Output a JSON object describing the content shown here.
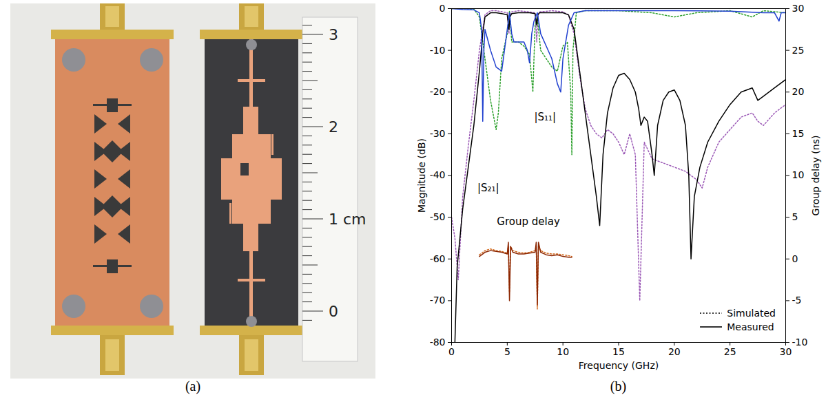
{
  "figure": {
    "panel_labels": [
      "(a)",
      "(b)"
    ],
    "photo": {
      "ruler_labels": [
        "0",
        "1 cm",
        "2",
        "3"
      ]
    }
  },
  "chart_data": {
    "type": "line",
    "x_label": "Frequency (GHz)",
    "y_label": "Magnitude (dB)",
    "y2_label": "Group delay (ns)",
    "xlim": [
      0,
      30
    ],
    "xticks": [
      0,
      5,
      10,
      15,
      20,
      25,
      30
    ],
    "ylim": [
      -80,
      0
    ],
    "yticks": [
      -80,
      -70,
      -60,
      -50,
      -40,
      -30,
      -20,
      -10,
      0
    ],
    "y2lim": [
      -10,
      30
    ],
    "y2ticks": [
      -10,
      -5,
      0,
      5,
      10,
      15,
      20,
      25,
      30
    ],
    "grid": false,
    "legend": "lower right",
    "annotations": [
      {
        "text": "|S₂₁|",
        "x": 3.3,
        "y": -43
      },
      {
        "text": "|S₁₁|",
        "x": 8.4,
        "y": -26
      },
      {
        "text": "Group delay",
        "x": 6.9,
        "y": -51
      }
    ],
    "series": [
      {
        "name": "Simulated",
        "color": "#9b59b6",
        "line_style": "dotted",
        "x": [
          0,
          0.3,
          0.6,
          1,
          1.5,
          2,
          2.5,
          3,
          3.5,
          4,
          5,
          5.15,
          5.25,
          5.4,
          6,
          7,
          7.5,
          7.65,
          7.75,
          7.9,
          9,
          10,
          10.5,
          11,
          11.5,
          12,
          12.5,
          13,
          13.5,
          14,
          14.5,
          15,
          15.5,
          16,
          16.5,
          16.9,
          17.3,
          18,
          19,
          20,
          21,
          22,
          22.5,
          23,
          24,
          25,
          26,
          27,
          27.5,
          28,
          29,
          30
        ],
        "values": [
          -50,
          -55,
          -65,
          -45,
          -33,
          -22,
          -10,
          -1.5,
          -0.5,
          -0.5,
          -1,
          -6,
          -1.5,
          -0.8,
          -0.5,
          -0.8,
          -1,
          -8,
          -1.5,
          -0.8,
          -0.5,
          -0.8,
          -1.5,
          -6,
          -16,
          -24,
          -28,
          -30,
          -31,
          -29,
          -30,
          -32,
          -35,
          -30,
          -35,
          -70,
          -32,
          -36,
          -37,
          -38,
          -39,
          -41,
          -43,
          -38,
          -32,
          -29,
          -26,
          -25,
          -27,
          -28,
          -25,
          -23
        ]
      },
      {
        "name": "Simulated",
        "color": "#2ca02c",
        "line_style": "dotted",
        "x": [
          0,
          1,
          2,
          2.5,
          3,
          3.5,
          4,
          4.2,
          4.5,
          5,
          5.2,
          5.4,
          6,
          6.5,
          7,
          7.3,
          7.5,
          7.7,
          8,
          9,
          9.5,
          10,
          10.4,
          10.7,
          10.8,
          10.9,
          11.2,
          12,
          15,
          18,
          20,
          22,
          25,
          27,
          28,
          30
        ],
        "values": [
          0,
          0,
          -0.1,
          -2,
          -12,
          -22,
          -29,
          -25,
          -12,
          -6,
          -0.5,
          -8,
          -8,
          -9,
          -11,
          -20,
          -4,
          -2,
          -10,
          -14,
          -15,
          -9,
          -8,
          -20,
          -35,
          -10,
          -1,
          -0.5,
          -0.5,
          -1,
          -2,
          -1,
          -0.5,
          -2,
          -0.5,
          -1
        ]
      },
      {
        "name": "Simulated",
        "color": "#d2691e",
        "line_style": "dotted",
        "axis": "y2",
        "x": [
          2.5,
          3,
          3.5,
          4,
          4.5,
          5,
          5.1,
          5.2,
          5.3,
          5.5,
          6,
          6.5,
          7,
          7.5,
          7.6,
          7.7,
          7.8,
          8,
          8.5,
          9,
          9.5,
          10,
          10.5,
          10.8
        ],
        "values": [
          0.5,
          1,
          1.2,
          1,
          0.9,
          0.7,
          1.5,
          -4,
          1.5,
          1,
          0.8,
          0.7,
          0.8,
          1,
          1.5,
          -6,
          1.5,
          1,
          0.7,
          0.6,
          0.6,
          0.5,
          0.4,
          0.3
        ]
      },
      {
        "name": "Measured",
        "color": "#000000",
        "line_style": "solid",
        "x": [
          0.3,
          0.5,
          1,
          1.5,
          2,
          2.5,
          2.8,
          3,
          3.5,
          4,
          4.5,
          5,
          5.15,
          5.25,
          5.4,
          6,
          6.5,
          7,
          7.5,
          7.65,
          7.75,
          7.9,
          8.5,
          9,
          9.5,
          10,
          10.5,
          11,
          11.5,
          12,
          12.5,
          13,
          13.3,
          13.6,
          14,
          14.5,
          15,
          15.5,
          16,
          16.5,
          16.8,
          17,
          17.3,
          17.6,
          18,
          18.2,
          18.5,
          19,
          19.5,
          20,
          20.5,
          21,
          21.3,
          21.5,
          21.8,
          22.3,
          23,
          24,
          25,
          26,
          27,
          27.5,
          28,
          29,
          30
        ],
        "values": [
          -80,
          -62,
          -48,
          -38,
          -28,
          -15,
          -6,
          -2,
          -1,
          -1,
          -1.2,
          -1.5,
          -5,
          -2,
          -1.2,
          -1,
          -1,
          -1,
          -1.2,
          -4,
          -1.5,
          -1,
          -1,
          -1,
          -1,
          -1,
          -1.5,
          -5,
          -15,
          -25,
          -35,
          -45,
          -52,
          -35,
          -25,
          -19,
          -16,
          -15.5,
          -17,
          -20,
          -24,
          -28,
          -26,
          -27,
          -35,
          -40,
          -28,
          -22,
          -20,
          -19.5,
          -22,
          -28,
          -40,
          -60,
          -45,
          -38,
          -32,
          -27,
          -23,
          -20,
          -19,
          -22,
          -21,
          -19,
          -17
        ]
      },
      {
        "name": "Measured",
        "color": "#1f3fcf",
        "line_style": "solid",
        "x": [
          0,
          1,
          2,
          2.5,
          2.7,
          2.8,
          2.9,
          3,
          3.5,
          4,
          4.5,
          5,
          5.2,
          5.4,
          5.6,
          6,
          6.5,
          6.8,
          7,
          7.2,
          7.4,
          7.7,
          8,
          8.5,
          9,
          9.5,
          9.8,
          10,
          10.5,
          11,
          12,
          15,
          20,
          25,
          28,
          29,
          29.4,
          29.6,
          30
        ],
        "values": [
          0,
          -0.2,
          -0.3,
          -1,
          -5,
          -27,
          -10,
          -5,
          -10,
          -14,
          -15,
          -5,
          -1,
          -6,
          -8,
          -8,
          -8,
          -10,
          -13,
          -6,
          -3,
          -1,
          -6,
          -9,
          -12,
          -18,
          -20,
          -12,
          -4,
          -1,
          -0.5,
          -0.5,
          -0.5,
          -0.6,
          -1,
          -1,
          -3,
          -1,
          -1
        ]
      },
      {
        "name": "Measured",
        "color": "#8b2500",
        "line_style": "solid",
        "axis": "y2",
        "x": [
          2.5,
          3,
          3.5,
          4,
          4.5,
          5,
          5.1,
          5.2,
          5.3,
          5.5,
          6,
          6.5,
          7,
          7.5,
          7.6,
          7.7,
          7.8,
          8,
          8.5,
          9,
          9.5,
          10,
          10.5,
          10.8
        ],
        "values": [
          0.3,
          0.8,
          1,
          0.9,
          0.8,
          0.6,
          2,
          -5,
          1.5,
          0.8,
          0.6,
          0.6,
          0.7,
          0.8,
          2,
          -5.5,
          2,
          0.8,
          0.5,
          0.4,
          0.5,
          0.3,
          0.2,
          0.2
        ]
      }
    ]
  }
}
